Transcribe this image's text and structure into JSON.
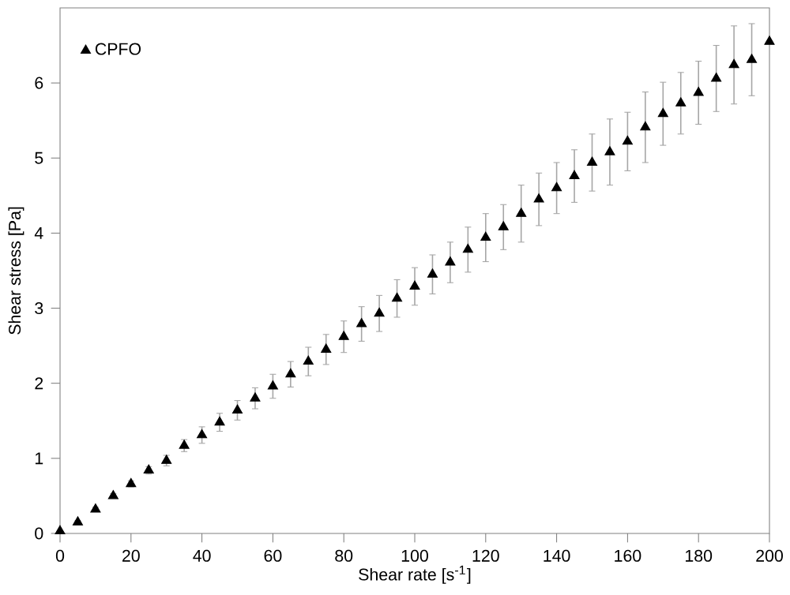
{
  "chart_data": {
    "type": "scatter",
    "xlabel": "Shear rate [s$^{-1}$]",
    "ylabel": "Shear stress [Pa]",
    "x": [
      0,
      5,
      10,
      15,
      20,
      25,
      30,
      35,
      40,
      45,
      50,
      55,
      60,
      65,
      70,
      75,
      80,
      85,
      90,
      95,
      100,
      105,
      110,
      115,
      120,
      125,
      130,
      135,
      140,
      145,
      150,
      155,
      160,
      165,
      170,
      175,
      180,
      185,
      190,
      195,
      200
    ],
    "series": [
      {
        "name": "CPFO",
        "color": "#000000",
        "values": [
          0.03,
          0.15,
          0.32,
          0.5,
          0.66,
          0.84,
          0.97,
          1.17,
          1.31,
          1.48,
          1.64,
          1.8,
          1.96,
          2.12,
          2.29,
          2.45,
          2.62,
          2.79,
          2.93,
          3.13,
          3.29,
          3.45,
          3.61,
          3.78,
          3.94,
          4.08,
          4.26,
          4.45,
          4.6,
          4.76,
          4.94,
          5.08,
          5.22,
          5.41,
          5.59,
          5.73,
          5.87,
          6.06,
          6.24,
          6.31,
          6.55
        ],
        "errors": [
          null,
          0.02,
          0.03,
          0.03,
          0.04,
          0.05,
          0.07,
          0.08,
          0.11,
          0.12,
          0.13,
          0.14,
          0.16,
          0.17,
          0.19,
          0.2,
          0.21,
          0.23,
          0.24,
          0.25,
          0.25,
          0.26,
          0.27,
          0.3,
          0.32,
          0.3,
          0.38,
          0.35,
          0.34,
          0.35,
          0.38,
          0.44,
          0.39,
          0.47,
          0.42,
          0.41,
          0.42,
          0.44,
          0.52,
          0.48,
          null
        ]
      }
    ],
    "xlim": [
      0,
      200
    ],
    "xticks": [
      0,
      20,
      40,
      60,
      80,
      100,
      120,
      140,
      160,
      180,
      200
    ],
    "ylim": [
      0,
      7
    ],
    "yticks": [
      0,
      1,
      2,
      3,
      4,
      5,
      6
    ],
    "marker": "triangle",
    "legend": "top left",
    "grid": false
  }
}
